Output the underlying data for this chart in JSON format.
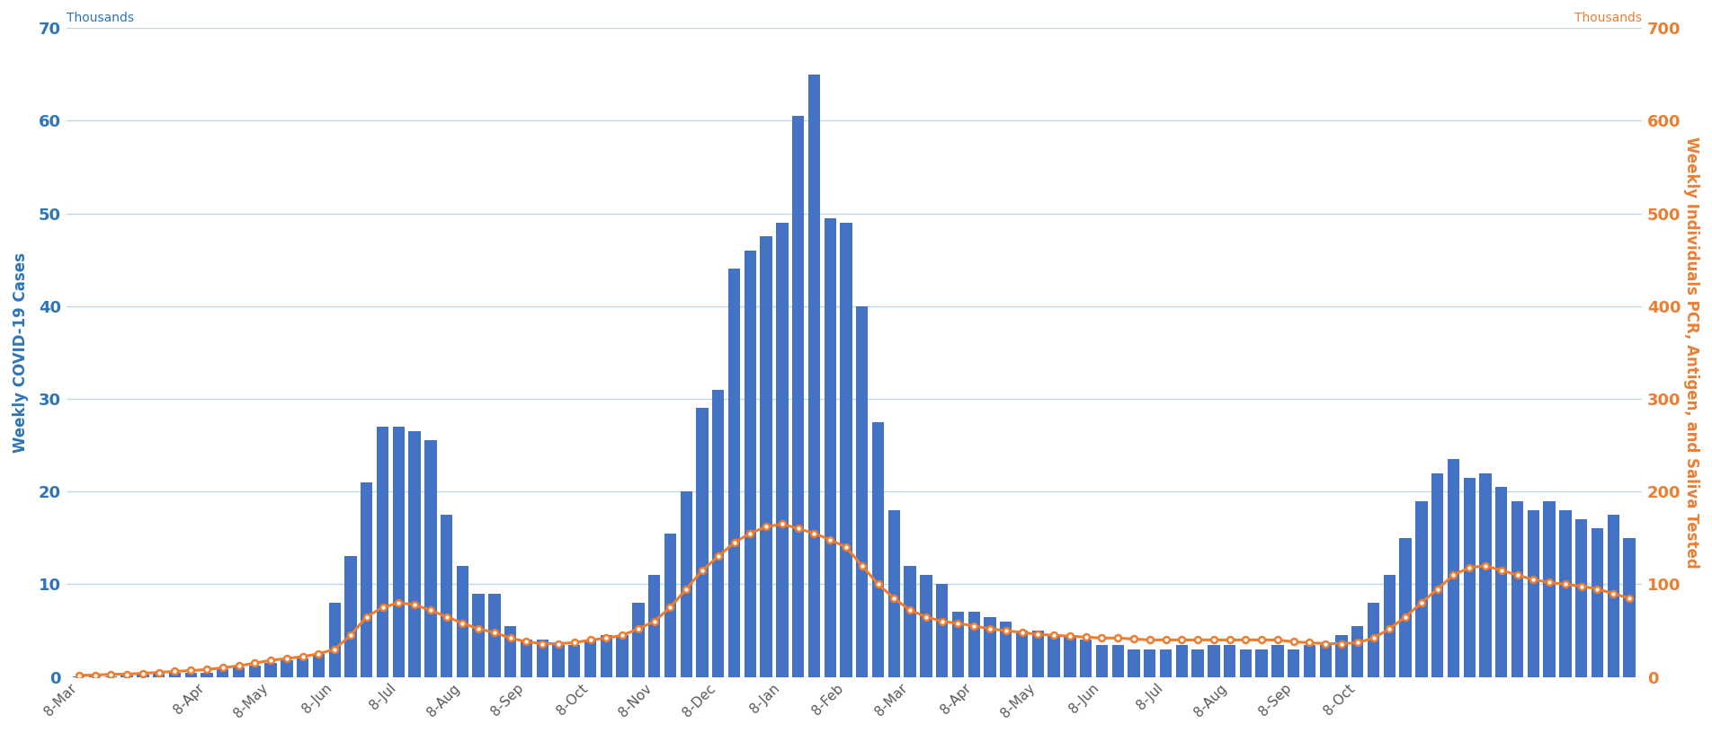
{
  "bar_vals": [
    0.1,
    0.1,
    0.1,
    0.2,
    0.3,
    0.4,
    0.5,
    0.5,
    0.5,
    0.8,
    1.0,
    1.2,
    1.5,
    1.8,
    2.0,
    2.5,
    8.0,
    13.0,
    21.0,
    27.0,
    27.0,
    26.5,
    25.5,
    17.5,
    12.0,
    9.0,
    9.0,
    5.5,
    4.0,
    4.0,
    3.5,
    3.5,
    4.0,
    4.5,
    4.5,
    8.0,
    11.0,
    15.5,
    20.0,
    29.0,
    31.0,
    44.0,
    46.0,
    47.5,
    49.0,
    60.5,
    65.0,
    49.5,
    49.0,
    40.0,
    27.5,
    18.0,
    12.0,
    11.0,
    10.0,
    7.0,
    7.0,
    6.5,
    6.0,
    5.0,
    5.0,
    4.5,
    4.5,
    4.0,
    3.5,
    3.5,
    3.0,
    3.0,
    3.0,
    3.5,
    3.0,
    3.5,
    3.5,
    3.0,
    3.0,
    3.5,
    3.0,
    3.5,
    3.5,
    4.5,
    5.5,
    8.0,
    11.0,
    15.0,
    19.0,
    22.0,
    23.5,
    21.5,
    22.0,
    20.5,
    19.0,
    18.0,
    19.0,
    18.0,
    17.0,
    16.0,
    17.5,
    15.0
  ],
  "line_vals": [
    2,
    2,
    3,
    3,
    4,
    5,
    6,
    7,
    8,
    10,
    12,
    15,
    18,
    20,
    22,
    25,
    30,
    45,
    65,
    75,
    80,
    78,
    72,
    65,
    58,
    52,
    48,
    42,
    38,
    36,
    36,
    37,
    40,
    42,
    45,
    52,
    60,
    75,
    95,
    115,
    130,
    145,
    155,
    162,
    165,
    160,
    155,
    148,
    140,
    120,
    100,
    85,
    72,
    65,
    60,
    58,
    55,
    52,
    50,
    48,
    46,
    45,
    44,
    43,
    42,
    42,
    41,
    40,
    40,
    40,
    40,
    40,
    40,
    40,
    40,
    40,
    38,
    37,
    36,
    36,
    37,
    42,
    52,
    65,
    80,
    95,
    110,
    118,
    120,
    115,
    110,
    105,
    102,
    100,
    98,
    95,
    90,
    85
  ],
  "x_tick_map": {
    "0": "8-Mar",
    "8": "8-Apr",
    "12": "8-May",
    "16": "8-Jun",
    "20": "8-Jul",
    "24": "8-Aug",
    "28": "8-Sep",
    "32": "8-Oct",
    "36": "8-Nov",
    "40": "8-Dec",
    "44": "8-Jan",
    "48": "8-Feb",
    "52": "8-Mar",
    "56": "8-Apr",
    "60": "8-May",
    "64": "8-Jun",
    "68": "8-Jul",
    "72": "8-Aug",
    "76": "8-Sep",
    "80": "8-Oct"
  },
  "bar_color": "#4472C4",
  "line_color": "#ED7D31",
  "left_ylabel": "Weekly COVID-19 Cases",
  "right_ylabel": "Weekly Individuals PCR, Antigen, and Saliva Tested",
  "left_ylabel_color": "#2E75B6",
  "right_ylabel_color": "#ED7D31",
  "left_thousands_label": "Thousands",
  "right_thousands_label": "Thousands",
  "ylim_left": [
    0,
    70
  ],
  "ylim_right": [
    0,
    700
  ],
  "yticks_left": [
    0,
    10,
    20,
    30,
    40,
    50,
    60,
    70
  ],
  "yticks_right": [
    0,
    100,
    200,
    300,
    400,
    500,
    600,
    700
  ],
  "background_color": "#FFFFFF",
  "gridline_color": "#BDD7EE",
  "tick_label_color_left": "#2E75B6",
  "tick_label_color_right": "#ED7D31",
  "tick_label_color_x": "#595959"
}
